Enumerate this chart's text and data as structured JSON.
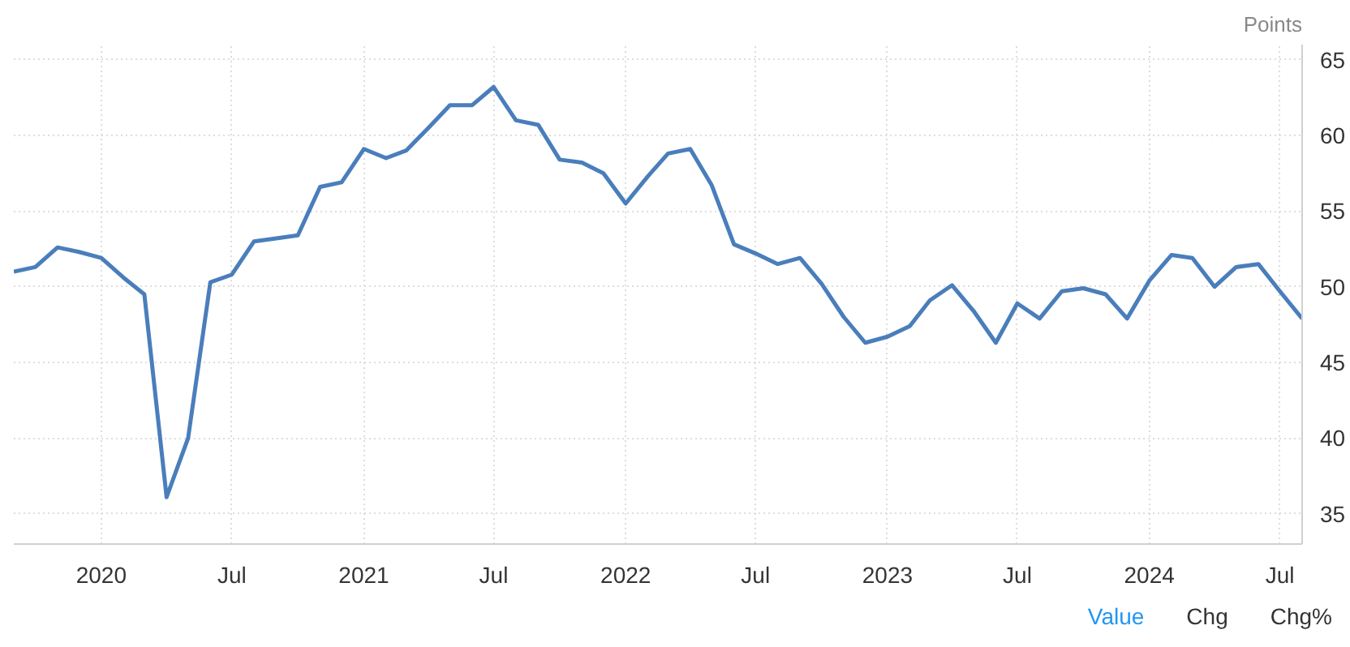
{
  "chart_data": {
    "type": "line",
    "ylabel": "Points",
    "x": [
      "2019-09",
      "2019-10",
      "2019-11",
      "2019-12",
      "2020-01",
      "2020-02",
      "2020-03",
      "2020-04",
      "2020-05",
      "2020-06",
      "2020-07",
      "2020-08",
      "2020-09",
      "2020-10",
      "2020-11",
      "2020-12",
      "2021-01",
      "2021-02",
      "2021-03",
      "2021-04",
      "2021-05",
      "2021-06",
      "2021-07",
      "2021-08",
      "2021-09",
      "2021-10",
      "2021-11",
      "2021-12",
      "2022-01",
      "2022-02",
      "2022-03",
      "2022-04",
      "2022-05",
      "2022-06",
      "2022-07",
      "2022-08",
      "2022-09",
      "2022-10",
      "2022-11",
      "2022-12",
      "2023-01",
      "2023-02",
      "2023-03",
      "2023-04",
      "2023-05",
      "2023-06",
      "2023-07",
      "2023-08",
      "2023-09",
      "2023-10",
      "2023-11",
      "2023-12",
      "2024-01",
      "2024-02",
      "2024-03",
      "2024-04",
      "2024-05",
      "2024-06",
      "2024-07",
      "2024-08"
    ],
    "series": [
      {
        "color": "#4a7ebb",
        "values": [
          51.0,
          51.3,
          52.6,
          52.3,
          51.9,
          50.6,
          49.5,
          36.1,
          40.0,
          50.3,
          50.8,
          53.0,
          53.2,
          53.4,
          56.6,
          56.9,
          59.1,
          58.5,
          59.0,
          60.5,
          62.0,
          62.0,
          63.2,
          61.0,
          60.7,
          58.4,
          58.2,
          57.5,
          55.5,
          57.3,
          58.8,
          59.1,
          56.7,
          52.8,
          52.2,
          51.5,
          51.9,
          50.2,
          48.0,
          46.3,
          46.7,
          47.4,
          49.1,
          50.1,
          48.4,
          46.3,
          48.9,
          47.9,
          49.7,
          49.9,
          49.5,
          47.9,
          50.4,
          52.1,
          51.9,
          50.0,
          51.3,
          51.5,
          49.7,
          47.9
        ]
      }
    ],
    "xlim": [
      "2019-09",
      "2024-08"
    ],
    "xticks": [
      {
        "value": "2020-01",
        "label": "2020"
      },
      {
        "value": "2020-07",
        "label": "Jul"
      },
      {
        "value": "2021-01",
        "label": "2021"
      },
      {
        "value": "2021-07",
        "label": "Jul"
      },
      {
        "value": "2022-01",
        "label": "2022"
      },
      {
        "value": "2022-07",
        "label": "Jul"
      },
      {
        "value": "2023-01",
        "label": "2023"
      },
      {
        "value": "2023-07",
        "label": "Jul"
      },
      {
        "value": "2024-01",
        "label": "2024"
      },
      {
        "value": "2024-07",
        "label": "Jul"
      }
    ],
    "ylim": [
      33,
      66
    ],
    "yticks": [
      35,
      40,
      45,
      50,
      55,
      60,
      65
    ],
    "grid": true,
    "line_style": "solid",
    "marker": "none",
    "annotations": [
      "Value",
      "Chg",
      "Chg%"
    ]
  }
}
